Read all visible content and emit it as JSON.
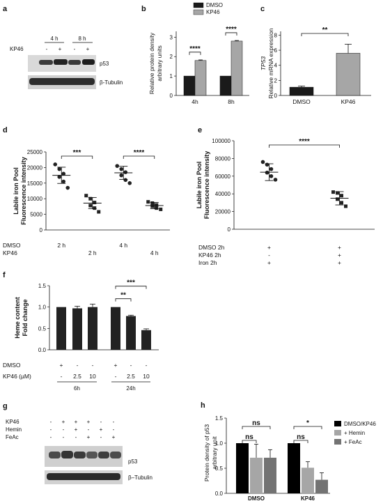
{
  "panels": {
    "a": {
      "label": "a",
      "time_labels": [
        "4 h",
        "8 h"
      ],
      "row_label": "KP46",
      "signs": [
        "-",
        "+",
        "-",
        "+"
      ],
      "blot_labels": [
        "p53",
        "β-Tubulin"
      ]
    },
    "g": {
      "label": "g",
      "rows": [
        {
          "name": "KP46",
          "signs": [
            "-",
            "+",
            "+",
            "+",
            "-",
            "-"
          ]
        },
        {
          "name": "Hemin",
          "signs": [
            "-",
            "-",
            "+",
            "-",
            "+",
            "-"
          ]
        },
        {
          "name": "FeAc",
          "signs": [
            "-",
            "-",
            "-",
            "+",
            "-",
            "+"
          ]
        }
      ],
      "blot_labels": [
        "p53",
        "β–Tubulin"
      ]
    }
  },
  "chart_data": [
    {
      "id": "b",
      "panel_label": "b",
      "type": "bar",
      "categories": [
        "4h",
        "8h"
      ],
      "series": [
        {
          "name": "DMSO",
          "values": [
            1.0,
            1.0
          ],
          "errors": [
            0,
            0
          ],
          "color": "#1a1a1a"
        },
        {
          "name": "KP46",
          "values": [
            1.8,
            2.8
          ],
          "errors": [
            0.03,
            0.03
          ],
          "color": "#a6a6a6"
        }
      ],
      "ylabel": [
        "Relative protein density",
        "arbitrary units"
      ],
      "yticks": [
        0,
        1,
        2,
        3
      ],
      "ylim": [
        0,
        3.3
      ],
      "significance": [
        {
          "category": "4h",
          "text": "****"
        },
        {
          "category": "8h",
          "text": "****"
        }
      ],
      "legend": [
        "DMSO",
        "KP46"
      ],
      "legend_position": "top"
    },
    {
      "id": "c",
      "panel_label": "c",
      "type": "bar",
      "categories": [
        "DMSO",
        "KP46"
      ],
      "values": [
        1.1,
        5.6
      ],
      "errors": [
        0.15,
        1.2
      ],
      "colors": [
        "#1a1a1a",
        "#a6a6a6"
      ],
      "ylabel_italic": "TP53",
      "ylabel": "Relative mRNA expression",
      "yticks": [
        0,
        2,
        4,
        6,
        8
      ],
      "ylim": [
        0,
        8.5
      ],
      "significance": [
        {
          "text": "**"
        }
      ]
    },
    {
      "id": "d",
      "panel_label": "d",
      "type": "scatter",
      "groups": [
        {
          "points": [
            21000,
            19500,
            18000,
            17000,
            15500,
            13500
          ],
          "mean": 17500,
          "sd": 2600
        },
        {
          "points": [
            11000,
            10000,
            8800,
            7800,
            7000,
            5800
          ],
          "mean": 8600,
          "sd": 1800
        },
        {
          "points": [
            20500,
            19500,
            18500,
            17500,
            16000,
            15000
          ],
          "mean": 18300,
          "sd": 2100
        },
        {
          "points": [
            9000,
            8600,
            8000,
            7600,
            7000,
            6600
          ],
          "mean": 7800,
          "sd": 1000
        }
      ],
      "ylabel": [
        "Labile iron Pool",
        "Fluorescence intensity"
      ],
      "yticks": [
        0,
        5000,
        10000,
        15000,
        20000,
        25000
      ],
      "ylim": [
        0,
        25000
      ],
      "significance": [
        {
          "from": 0,
          "to": 1,
          "text": "***"
        },
        {
          "from": 2,
          "to": 3,
          "text": "****"
        }
      ],
      "condition_rows": [
        {
          "name": "DMSO",
          "values": [
            "2 h",
            "",
            "4 h",
            ""
          ]
        },
        {
          "name": "KP46",
          "values": [
            "",
            "2 h",
            "",
            "4 h"
          ]
        }
      ]
    },
    {
      "id": "e",
      "panel_label": "e",
      "type": "scatter",
      "groups": [
        {
          "points": [
            76000,
            73000,
            68000,
            64000,
            60000,
            56000
          ],
          "mean": 64500,
          "sd": 9500
        },
        {
          "points": [
            42000,
            41000,
            38000,
            34000,
            30000,
            26000
          ],
          "mean": 35000,
          "sd": 7500
        }
      ],
      "ylabel": [
        "Labile iron Pool",
        "Fluorescence intensity"
      ],
      "yticks": [
        0,
        20000,
        40000,
        60000,
        80000,
        100000
      ],
      "ylim": [
        0,
        100000
      ],
      "significance": [
        {
          "from": 0,
          "to": 1,
          "text": "****"
        }
      ],
      "condition_rows": [
        {
          "name": "DMSO 2h",
          "values": [
            "+",
            "+"
          ]
        },
        {
          "name": "KP46  2h",
          "values": [
            "-",
            "+"
          ]
        },
        {
          "name": "Iron   2h",
          "values": [
            "+",
            "+"
          ]
        }
      ]
    },
    {
      "id": "f",
      "panel_label": "f",
      "type": "bar",
      "groups": [
        {
          "time": "6h",
          "values": [
            1.0,
            0.97,
            1.0
          ],
          "errors": [
            0,
            0.05,
            0.07
          ]
        },
        {
          "time": "24h",
          "values": [
            1.0,
            0.79,
            0.46
          ],
          "errors": [
            0,
            0.02,
            0.03
          ]
        }
      ],
      "ylabel": [
        "Heme content",
        "Fold change"
      ],
      "yticks": [
        0.0,
        0.5,
        1.0,
        1.5
      ],
      "ylim": [
        0,
        1.5
      ],
      "significance": [
        {
          "from": 0,
          "to": 1,
          "text": "**"
        },
        {
          "from": 0,
          "to": 2,
          "text": "***"
        }
      ],
      "condition_rows": [
        {
          "name": "DMSO",
          "values": [
            "+",
            "-",
            "-",
            "+",
            "-",
            "-"
          ]
        },
        {
          "name": "KP46 (µM)",
          "values": [
            "-",
            "2.5",
            "10",
            "-",
            "2.5",
            "10"
          ]
        }
      ],
      "color": "#222222"
    },
    {
      "id": "h",
      "panel_label": "h",
      "type": "bar",
      "categories": [
        "DMSO",
        "KP46"
      ],
      "series": [
        {
          "name": "DMSO/KP46",
          "values": [
            1.0,
            1.0
          ],
          "errors": [
            0,
            0
          ],
          "color": "#000000"
        },
        {
          "name": "+ Hemin",
          "values": [
            0.71,
            0.51
          ],
          "errors": [
            0.27,
            0.12
          ],
          "color": "#a6a6a6"
        },
        {
          "name": "+ FeAc",
          "values": [
            0.71,
            0.27
          ],
          "errors": [
            0.16,
            0.14
          ],
          "color": "#737373"
        }
      ],
      "ylabel": [
        "Protein density of p53",
        "arbitrary unit"
      ],
      "yticks": [
        0.0,
        0.5,
        1.0,
        1.5
      ],
      "ylim": [
        0,
        1.5
      ],
      "significance": [
        {
          "category": "DMSO",
          "to": 1,
          "text": "ns"
        },
        {
          "category": "DMSO",
          "to": 2,
          "text": "ns"
        },
        {
          "category": "KP46",
          "to": 1,
          "text": "ns"
        },
        {
          "category": "KP46",
          "to": 2,
          "text": "*"
        }
      ],
      "legend": [
        "DMSO/KP46",
        "+ Hemin",
        "+ FeAc"
      ],
      "legend_position": "right"
    }
  ]
}
